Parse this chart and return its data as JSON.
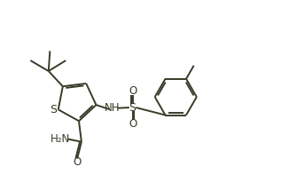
{
  "bg_color": "#ffffff",
  "line_color": "#3a3a28",
  "line_width": 1.4,
  "font_size": 8.5,
  "figsize": [
    3.17,
    2.15
  ],
  "dpi": 100,
  "xlim": [
    0,
    10
  ],
  "ylim": [
    0,
    6.8
  ]
}
